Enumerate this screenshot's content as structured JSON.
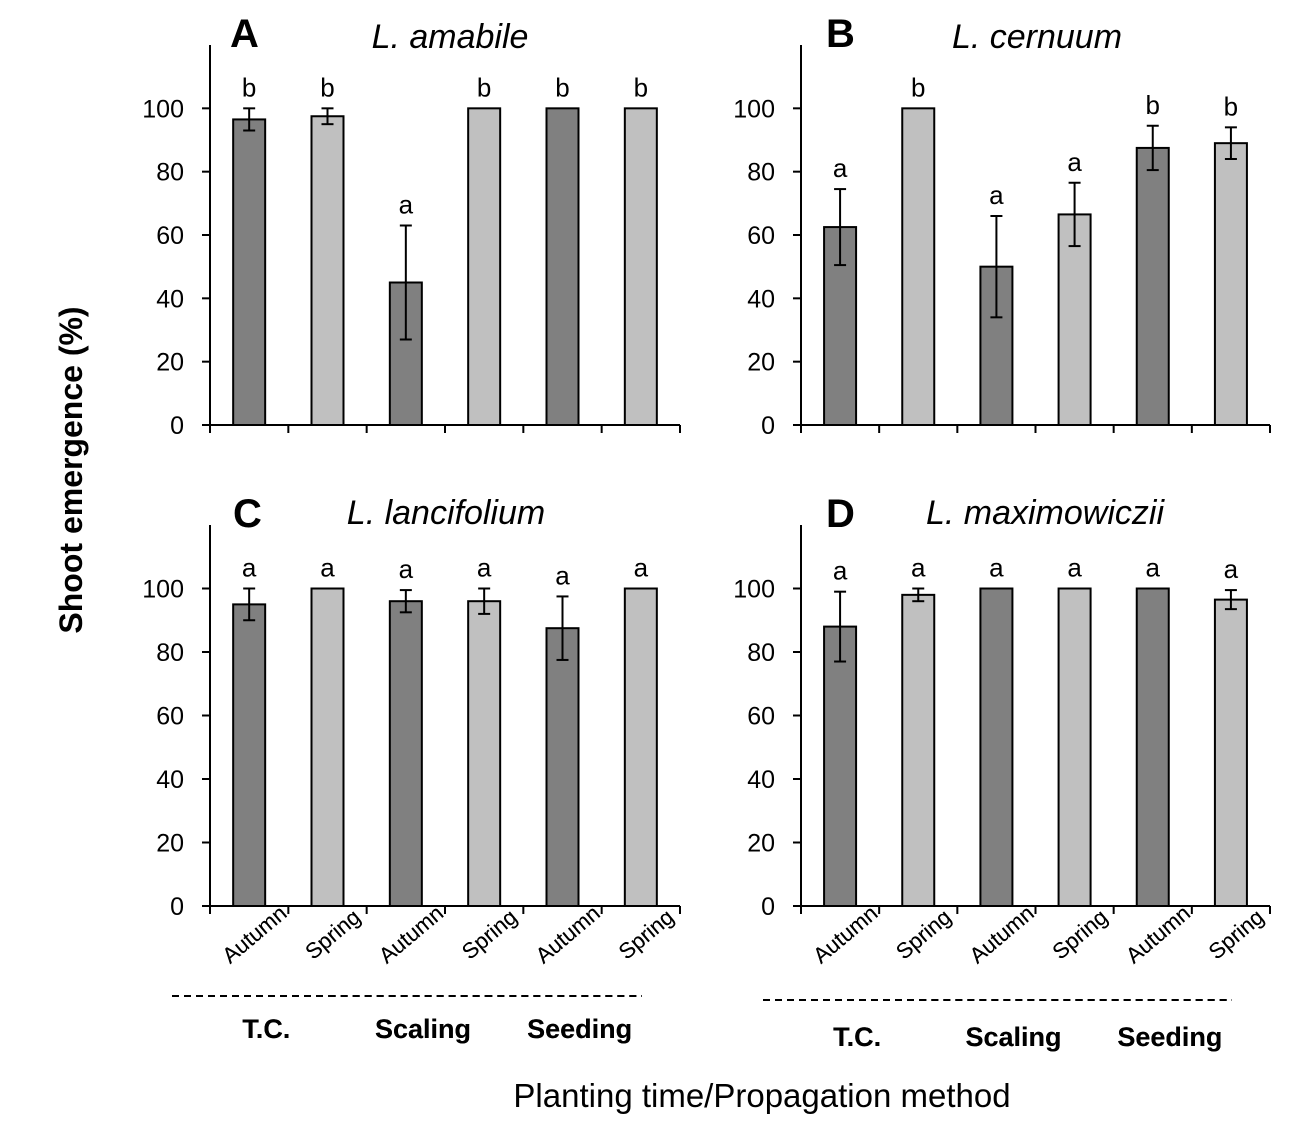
{
  "figure": {
    "ylabel": "Shoot emergence (%)",
    "xlabel": "Planting time/Propagation method",
    "colors": {
      "autumn": "#808080",
      "spring": "#c0c0c0",
      "axis": "#000000"
    }
  },
  "chart_data": [
    {
      "type": "bar",
      "panel": "A",
      "title": "L. amabile",
      "categories": [
        "Autumn",
        "Spring",
        "Autumn",
        "Spring",
        "Autumn",
        "Spring"
      ],
      "groups": [
        "T.C.",
        "Scaling",
        "Seeding"
      ],
      "values": [
        96.5,
        97.5,
        45,
        100,
        100,
        100
      ],
      "errors": [
        3.5,
        2.5,
        18,
        0,
        0,
        0
      ],
      "significance": [
        "b",
        "b",
        "a",
        "b",
        "b",
        "b"
      ],
      "ylim": [
        0,
        120
      ],
      "yticks": [
        0,
        20,
        40,
        60,
        80,
        100
      ],
      "show_category_labels": true
    },
    {
      "type": "bar",
      "panel": "B",
      "title": "L. cernuum",
      "categories": [
        "Autumn",
        "Spring",
        "Autumn",
        "Spring",
        "Autumn",
        "Spring"
      ],
      "groups": [
        "T.C.",
        "Scaling",
        "Seeding"
      ],
      "values": [
        62.5,
        100,
        50,
        66.5,
        87.5,
        89
      ],
      "errors": [
        12,
        0,
        16,
        10,
        7,
        5
      ],
      "significance": [
        "a",
        "b",
        "a",
        "a",
        "b",
        "b"
      ],
      "ylim": [
        0,
        120
      ],
      "yticks": [
        0,
        20,
        40,
        60,
        80,
        100
      ],
      "show_category_labels": true
    },
    {
      "type": "bar",
      "panel": "C",
      "title": "L. lancifolium",
      "categories": [
        "Autumn",
        "Spring",
        "Autumn",
        "Spring",
        "Autumn",
        "Spring"
      ],
      "groups": [
        "T.C.",
        "Scaling",
        "Seeding"
      ],
      "values": [
        95,
        100,
        96,
        96,
        87.5,
        100
      ],
      "errors": [
        5,
        0,
        3.5,
        4,
        10,
        0
      ],
      "significance": [
        "a",
        "a",
        "a",
        "a",
        "a",
        "a"
      ],
      "ylim": [
        0,
        120
      ],
      "yticks": [
        0,
        20,
        40,
        60,
        80,
        100
      ],
      "show_category_labels": true
    },
    {
      "type": "bar",
      "panel": "D",
      "title": "L. maximowiczii",
      "categories": [
        "Autumn",
        "Spring",
        "Autumn",
        "Spring",
        "Autumn",
        "Spring"
      ],
      "groups": [
        "T.C.",
        "Scaling",
        "Seeding"
      ],
      "values": [
        88,
        98,
        100,
        100,
        100,
        96.5
      ],
      "errors": [
        11,
        2,
        0,
        0,
        0,
        3
      ],
      "significance": [
        "a",
        "a",
        "a",
        "a",
        "a",
        "a"
      ],
      "ylim": [
        0,
        120
      ],
      "yticks": [
        0,
        20,
        40,
        60,
        80,
        100
      ],
      "show_category_labels": true
    }
  ]
}
